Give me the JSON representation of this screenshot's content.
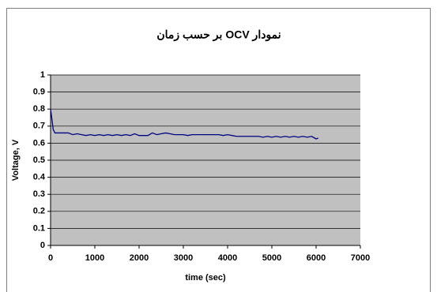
{
  "chart_data": {
    "type": "line",
    "title": "نمودار OCV بر حسب زمان",
    "xlabel": "time (sec)",
    "ylabel": "Voltage, V",
    "x": [
      0,
      30,
      60,
      100,
      200,
      300,
      400,
      500,
      600,
      700,
      800,
      900,
      1000,
      1100,
      1200,
      1300,
      1400,
      1500,
      1600,
      1700,
      1800,
      1900,
      2000,
      2100,
      2200,
      2300,
      2400,
      2500,
      2600,
      2700,
      2800,
      2900,
      3000,
      3100,
      3200,
      3400,
      3600,
      3800,
      3900,
      4000,
      4100,
      4200,
      4300,
      4500,
      4700,
      4800,
      4900,
      5000,
      5100,
      5200,
      5300,
      5400,
      5500,
      5600,
      5700,
      5800,
      5900,
      6000,
      6050
    ],
    "series": [
      {
        "color": "#000080",
        "values": [
          0.8,
          0.74,
          0.68,
          0.66,
          0.66,
          0.66,
          0.66,
          0.65,
          0.655,
          0.65,
          0.645,
          0.65,
          0.645,
          0.65,
          0.645,
          0.65,
          0.645,
          0.65,
          0.645,
          0.65,
          0.645,
          0.655,
          0.645,
          0.645,
          0.645,
          0.66,
          0.65,
          0.655,
          0.66,
          0.655,
          0.65,
          0.65,
          0.65,
          0.645,
          0.65,
          0.65,
          0.65,
          0.65,
          0.645,
          0.65,
          0.645,
          0.64,
          0.64,
          0.64,
          0.64,
          0.635,
          0.64,
          0.635,
          0.64,
          0.635,
          0.64,
          0.635,
          0.64,
          0.635,
          0.64,
          0.635,
          0.64,
          0.625,
          0.63
        ]
      }
    ],
    "xlim": [
      0,
      7000
    ],
    "xticks": [
      0,
      1000,
      2000,
      3000,
      4000,
      5000,
      6000,
      7000
    ],
    "ylim": [
      0,
      1
    ],
    "yticks": [
      0,
      0.1,
      0.2,
      0.3,
      0.4,
      0.5,
      0.6,
      0.7,
      0.8,
      0.9,
      1
    ],
    "grid": true,
    "plot_background": "#c0c0c0"
  }
}
